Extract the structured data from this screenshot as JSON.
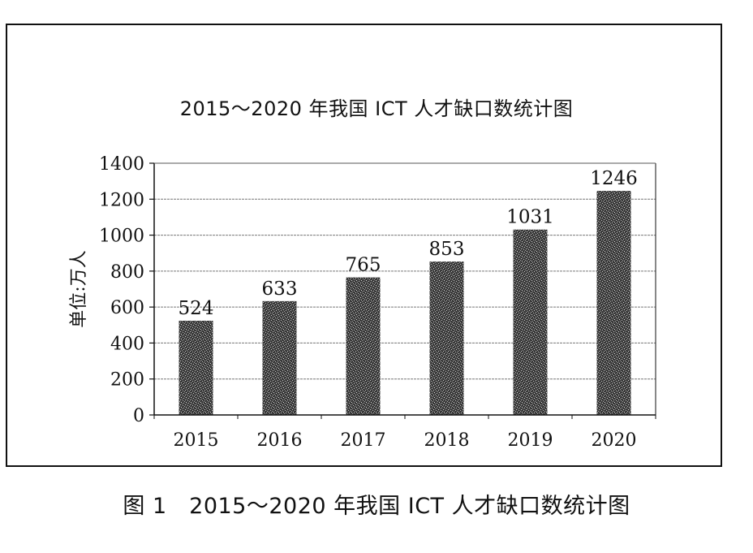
{
  "chart_data": {
    "type": "bar",
    "title": "2015～2020 年我国 ICT 人才缺口数统计图",
    "xlabel": "",
    "ylabel": "单位:万人",
    "categories": [
      "2015",
      "2016",
      "2017",
      "2018",
      "2019",
      "2020"
    ],
    "values": [
      524,
      633,
      765,
      853,
      1031,
      1246
    ],
    "ylim": [
      0,
      1400
    ],
    "yticks": [
      0,
      200,
      400,
      600,
      800,
      1000,
      1200,
      1400
    ],
    "grid": true,
    "legend": "none",
    "bar_color": "#555555"
  },
  "caption": "图 1　2015～2020 年我国 ICT 人才缺口数统计图"
}
